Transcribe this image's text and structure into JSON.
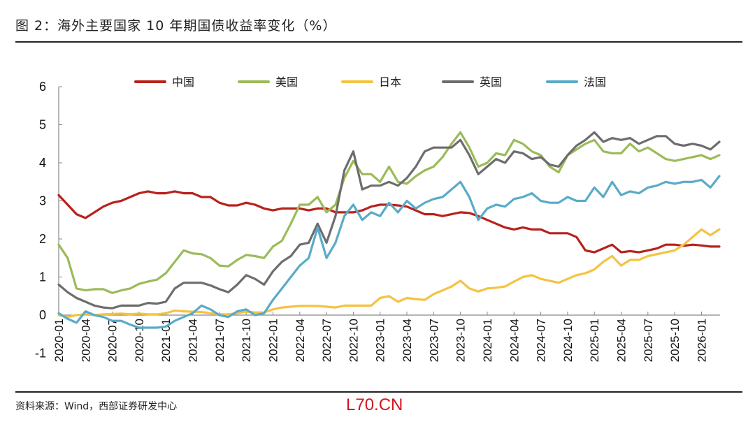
{
  "header": {
    "title": "图 2：海外主要国家 10 年期国债收益率变化（%）"
  },
  "footer": {
    "source": "资料来源：Wind，西部证券研发中心",
    "watermark": "L70.CN"
  },
  "chart_data": {
    "type": "line",
    "title": "图 2：海外主要国家 10 年期国债收益率变化（%）",
    "xlabel": "",
    "ylabel": "",
    "ylim": [
      -1,
      6
    ],
    "yticks": [
      "-1",
      "0",
      "1",
      "2",
      "3",
      "4",
      "5",
      "6"
    ],
    "xticks": [
      "2020-01",
      "2020-04",
      "2020-07",
      "2020-10",
      "2021-01",
      "2021-04",
      "2021-07",
      "2021-10",
      "2022-01",
      "2022-04",
      "2022-07",
      "2022-10",
      "2023-01",
      "2023-04",
      "2023-07",
      "2023-10",
      "2024-01",
      "2024-04",
      "2024-07",
      "2024-10",
      "2025-01",
      "2025-04",
      "2025-07",
      "2025-10",
      "2026-01"
    ],
    "legend_position": "top-center",
    "grid": false,
    "x_start": "2020-01",
    "x_step": "month",
    "series": [
      {
        "name": "中国",
        "color": "#b7221b",
        "values": [
          3.15,
          2.9,
          2.65,
          2.55,
          2.7,
          2.85,
          2.95,
          3.0,
          3.1,
          3.2,
          3.25,
          3.2,
          3.2,
          3.25,
          3.2,
          3.2,
          3.1,
          3.1,
          2.95,
          2.88,
          2.88,
          2.95,
          2.9,
          2.8,
          2.75,
          2.8,
          2.8,
          2.8,
          2.75,
          2.8,
          2.8,
          2.7,
          2.7,
          2.7,
          2.75,
          2.85,
          2.9,
          2.9,
          2.88,
          2.85,
          2.75,
          2.65,
          2.65,
          2.6,
          2.65,
          2.7,
          2.68,
          2.6,
          2.5,
          2.4,
          2.3,
          2.25,
          2.3,
          2.25,
          2.25,
          2.15,
          2.15,
          2.15,
          2.05,
          1.7,
          1.65,
          1.75,
          1.85,
          1.65,
          1.68,
          1.65,
          1.7,
          1.75,
          1.85,
          1.85,
          1.82,
          1.85,
          1.83,
          1.8,
          1.8
        ]
      },
      {
        "name": "美国",
        "color": "#9bbb59",
        "values": [
          1.85,
          1.5,
          0.7,
          0.65,
          0.68,
          0.68,
          0.58,
          0.65,
          0.7,
          0.82,
          0.88,
          0.93,
          1.1,
          1.4,
          1.7,
          1.62,
          1.6,
          1.5,
          1.3,
          1.28,
          1.45,
          1.58,
          1.55,
          1.5,
          1.8,
          1.95,
          2.4,
          2.9,
          2.9,
          3.1,
          2.7,
          2.9,
          3.6,
          4.05,
          3.7,
          3.7,
          3.5,
          3.9,
          3.5,
          3.45,
          3.65,
          3.8,
          3.9,
          4.15,
          4.5,
          4.8,
          4.4,
          3.9,
          4.0,
          4.25,
          4.2,
          4.6,
          4.5,
          4.3,
          4.2,
          3.9,
          3.75,
          4.2,
          4.35,
          4.5,
          4.6,
          4.3,
          4.25,
          4.25,
          4.5,
          4.3,
          4.4,
          4.25,
          4.1,
          4.05,
          4.1,
          4.15,
          4.2,
          4.1,
          4.2
        ]
      },
      {
        "name": "日本",
        "color": "#f5c242",
        "values": [
          0.0,
          -0.05,
          0.0,
          0.02,
          0.0,
          0.02,
          0.03,
          0.04,
          0.02,
          0.04,
          0.02,
          0.02,
          0.05,
          0.12,
          0.1,
          0.09,
          0.08,
          0.05,
          0.02,
          0.02,
          0.05,
          0.09,
          0.07,
          0.07,
          0.15,
          0.2,
          0.22,
          0.24,
          0.24,
          0.24,
          0.22,
          0.2,
          0.25,
          0.25,
          0.25,
          0.25,
          0.45,
          0.5,
          0.35,
          0.45,
          0.42,
          0.4,
          0.55,
          0.65,
          0.75,
          0.9,
          0.7,
          0.62,
          0.7,
          0.72,
          0.75,
          0.88,
          1.0,
          1.05,
          0.95,
          0.9,
          0.85,
          0.95,
          1.05,
          1.1,
          1.2,
          1.4,
          1.55,
          1.3,
          1.45,
          1.45,
          1.55,
          1.6,
          1.65,
          1.7,
          1.85,
          2.05,
          2.25,
          2.1,
          2.25
        ]
      },
      {
        "name": "英国",
        "color": "#6d6d6d",
        "values": [
          0.8,
          0.6,
          0.45,
          0.35,
          0.25,
          0.2,
          0.18,
          0.25,
          0.25,
          0.25,
          0.32,
          0.3,
          0.35,
          0.7,
          0.85,
          0.85,
          0.85,
          0.78,
          0.68,
          0.6,
          0.8,
          1.05,
          0.95,
          0.8,
          1.15,
          1.4,
          1.55,
          1.85,
          1.9,
          2.4,
          1.9,
          2.6,
          3.8,
          4.3,
          3.3,
          3.4,
          3.4,
          3.5,
          3.4,
          3.6,
          3.9,
          4.3,
          4.4,
          4.4,
          4.4,
          4.6,
          4.2,
          3.7,
          3.9,
          4.1,
          4.0,
          4.3,
          4.25,
          4.1,
          4.15,
          3.95,
          3.9,
          4.2,
          4.45,
          4.6,
          4.8,
          4.55,
          4.65,
          4.6,
          4.65,
          4.5,
          4.6,
          4.7,
          4.7,
          4.5,
          4.45,
          4.5,
          4.45,
          4.35,
          4.55
        ]
      },
      {
        "name": "法国",
        "color": "#5aabc8",
        "values": [
          0.05,
          -0.1,
          -0.2,
          0.1,
          0.0,
          -0.05,
          -0.15,
          -0.15,
          -0.25,
          -0.33,
          -0.33,
          -0.33,
          -0.3,
          -0.15,
          -0.05,
          0.05,
          0.25,
          0.15,
          0.0,
          -0.05,
          0.1,
          0.15,
          0.0,
          0.05,
          0.4,
          0.7,
          1.0,
          1.3,
          1.5,
          2.3,
          1.5,
          1.9,
          2.6,
          2.9,
          2.5,
          2.7,
          2.6,
          2.95,
          2.7,
          3.0,
          2.8,
          2.95,
          3.05,
          3.1,
          3.3,
          3.5,
          3.1,
          2.5,
          2.8,
          2.9,
          2.85,
          3.05,
          3.1,
          3.2,
          3.0,
          2.95,
          2.95,
          3.1,
          3.0,
          3.0,
          3.35,
          3.1,
          3.5,
          3.15,
          3.25,
          3.2,
          3.35,
          3.4,
          3.5,
          3.45,
          3.5,
          3.5,
          3.55,
          3.35,
          3.65
        ]
      }
    ]
  }
}
